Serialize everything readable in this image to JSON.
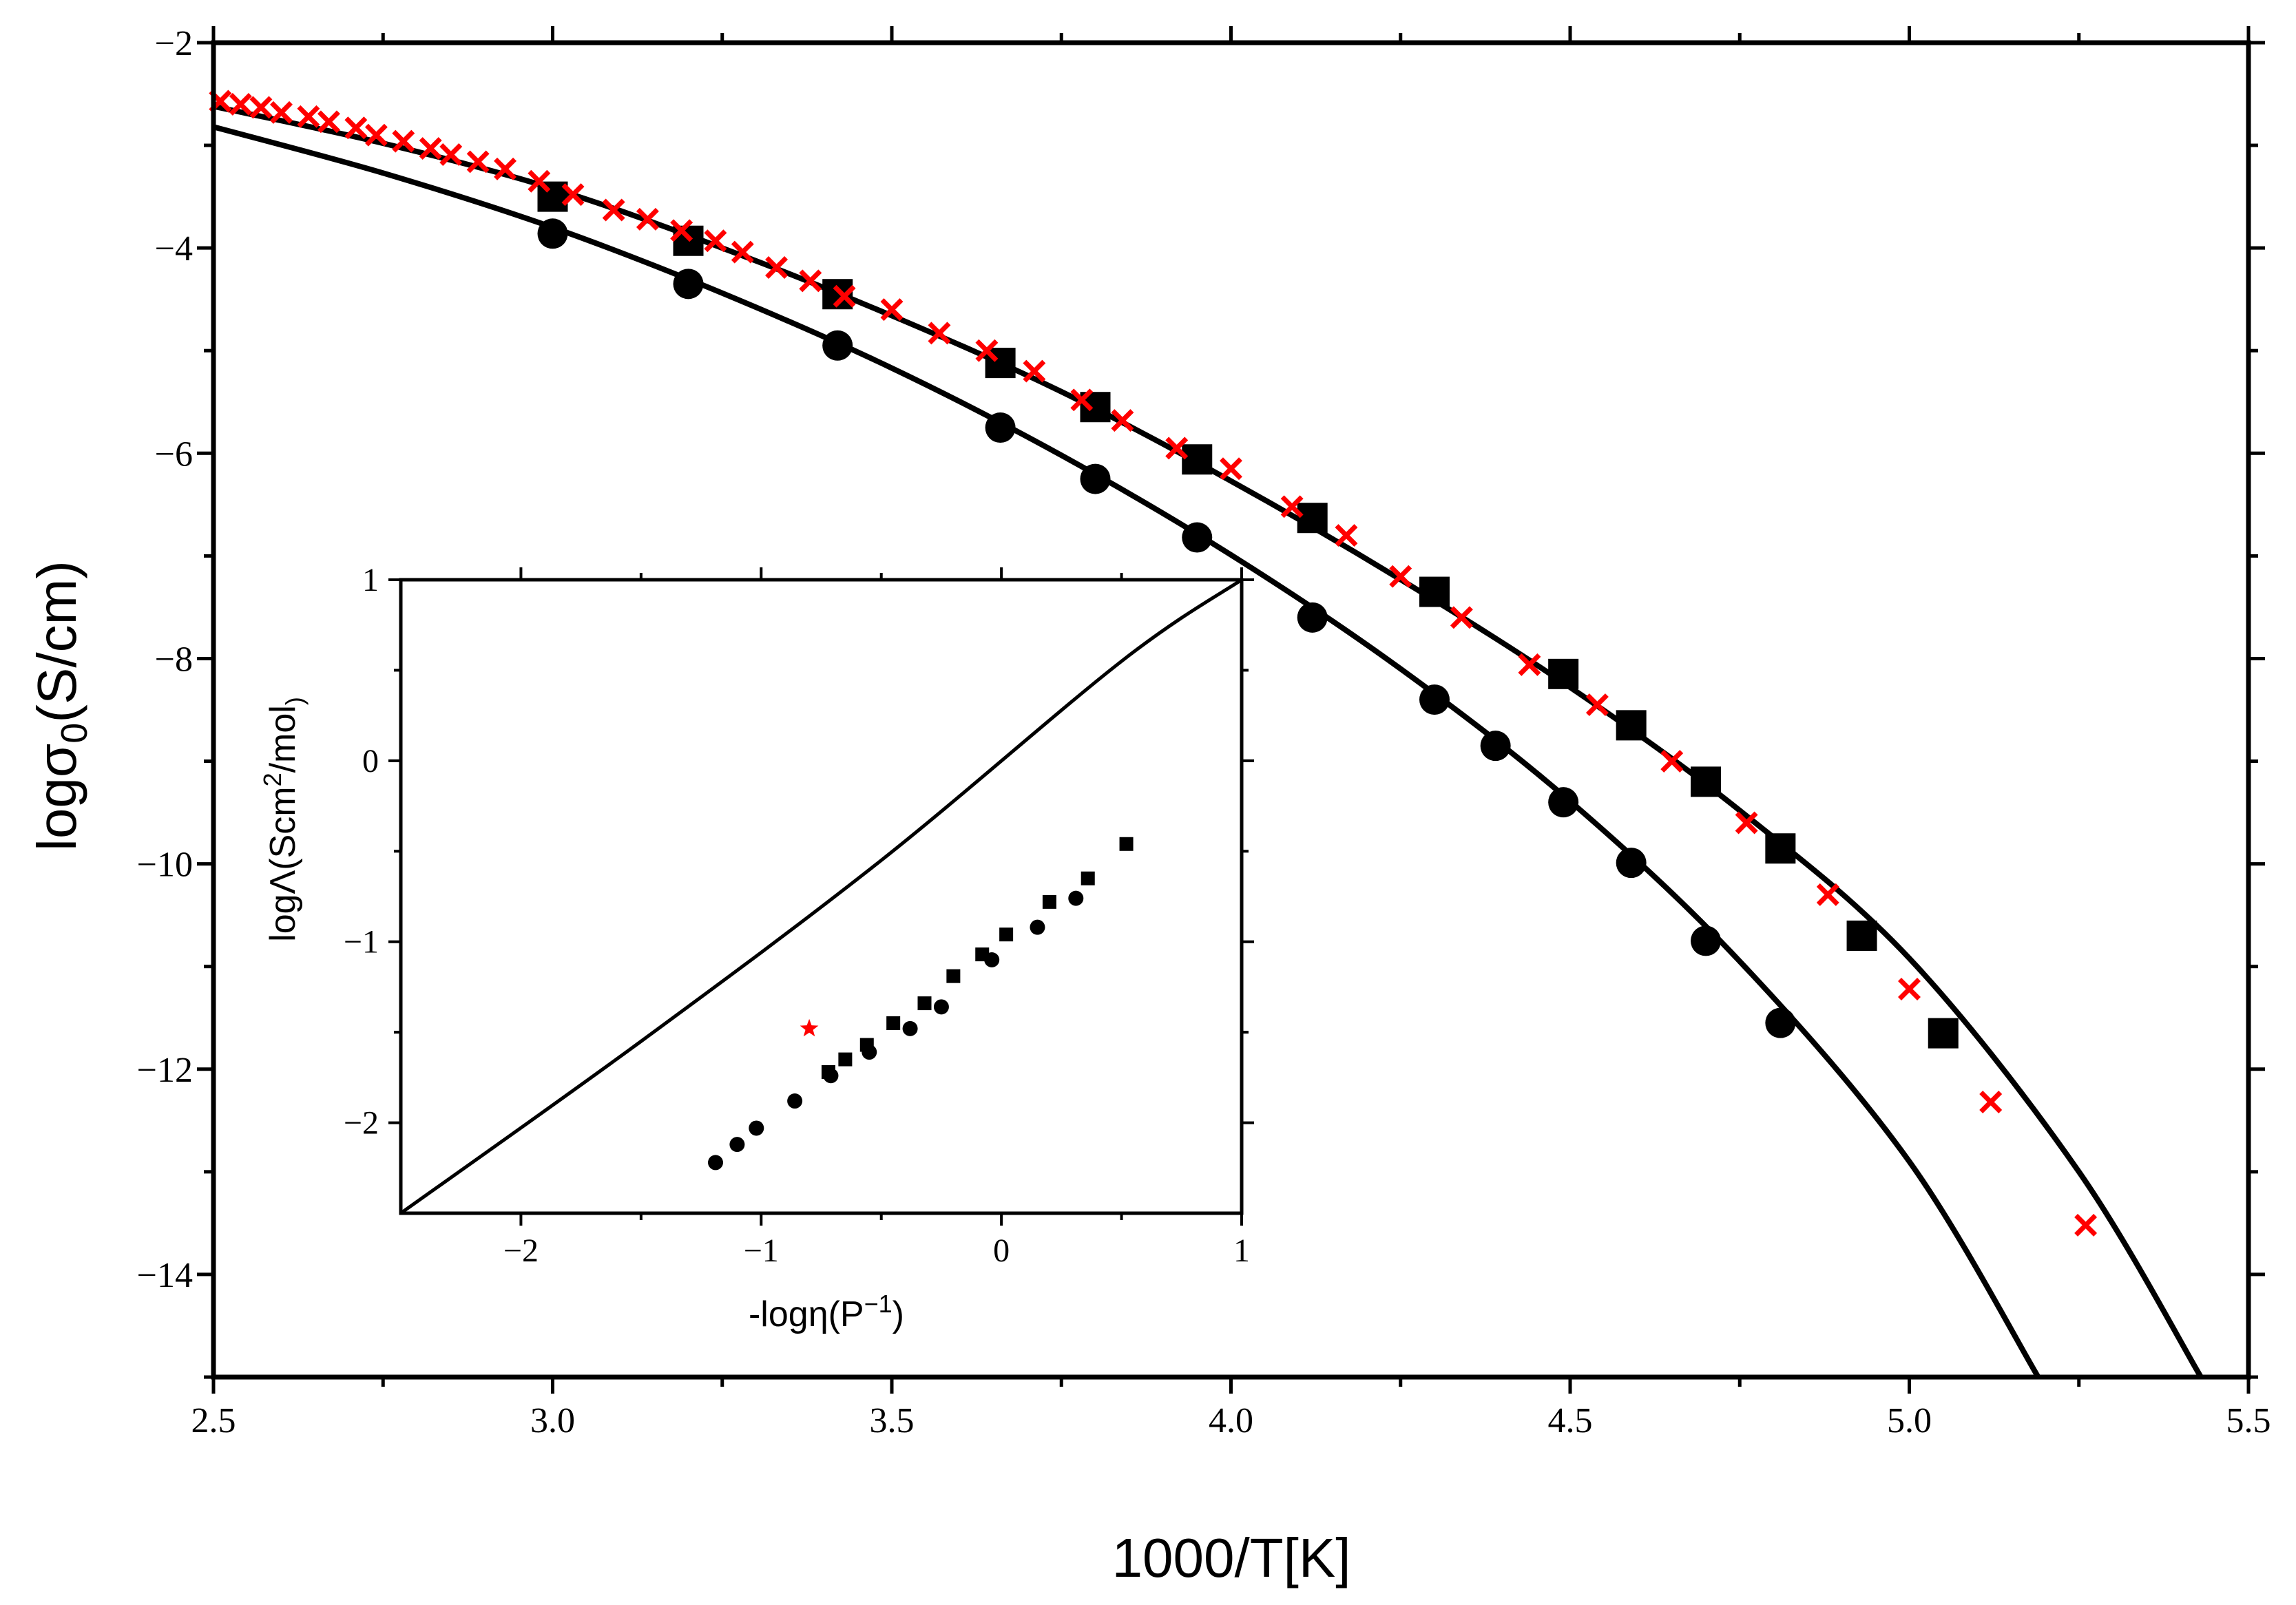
{
  "chart_data": [
    {
      "id": "main",
      "type": "scatter",
      "title": "",
      "xlabel": "1000/T[K]",
      "ylabel_base": "logσ",
      "ylabel_sub": "0",
      "ylabel_unit": "(S/cm)",
      "xlim": [
        2.5,
        5.5
      ],
      "ylim": [
        -15,
        -2
      ],
      "xticks": [
        2.5,
        3.0,
        3.5,
        4.0,
        4.5,
        5.0,
        5.5
      ],
      "xtick_labels": [
        "2.5",
        "3.0",
        "3.5",
        "4.0",
        "4.5",
        "5.0",
        "5.5"
      ],
      "yticks": [
        -14,
        -12,
        -10,
        -8,
        -6,
        -4,
        -2
      ],
      "ytick_labels": [
        "−14",
        "−12",
        "−10",
        "−8",
        "−6",
        "−4",
        "−2"
      ],
      "grid": false,
      "series": [
        {
          "name": "squares",
          "marker": "square",
          "color": "#000000",
          "x": [
            3.0,
            3.2,
            3.42,
            3.66,
            3.8,
            3.95,
            4.12,
            4.3,
            4.49,
            4.59,
            4.7,
            4.81,
            4.93,
            5.05
          ],
          "y": [
            -3.5,
            -3.93,
            -4.45,
            -5.12,
            -5.55,
            -6.06,
            -6.63,
            -7.35,
            -8.15,
            -8.65,
            -9.2,
            -9.85,
            -10.7,
            -11.65
          ]
        },
        {
          "name": "circles",
          "marker": "circle",
          "color": "#000000",
          "x": [
            3.0,
            3.2,
            3.42,
            3.66,
            3.8,
            3.95,
            4.12,
            4.3,
            4.39,
            4.49,
            4.59,
            4.7,
            4.81
          ],
          "y": [
            -3.86,
            -4.35,
            -4.95,
            -5.75,
            -6.25,
            -6.82,
            -7.6,
            -8.4,
            -8.85,
            -9.4,
            -9.99,
            -10.75,
            -11.55
          ]
        },
        {
          "name": "crosses",
          "marker": "x",
          "color": "#ff0000",
          "x": [
            2.51,
            2.54,
            2.57,
            2.6,
            2.64,
            2.67,
            2.71,
            2.74,
            2.78,
            2.82,
            2.85,
            2.89,
            2.93,
            2.98,
            3.03,
            3.09,
            3.14,
            3.19,
            3.24,
            3.28,
            3.33,
            3.38,
            3.43,
            3.5,
            3.57,
            3.64,
            3.71,
            3.78,
            3.84,
            3.92,
            4.0,
            4.09,
            4.17,
            4.25,
            4.34,
            4.44,
            4.54,
            4.65,
            4.76,
            4.88,
            5.0,
            5.12,
            5.26
          ],
          "y": [
            -2.57,
            -2.6,
            -2.63,
            -2.68,
            -2.72,
            -2.77,
            -2.83,
            -2.9,
            -2.96,
            -3.03,
            -3.09,
            -3.16,
            -3.23,
            -3.35,
            -3.48,
            -3.63,
            -3.72,
            -3.83,
            -3.93,
            -4.04,
            -4.19,
            -4.32,
            -4.47,
            -4.6,
            -4.83,
            -5.0,
            -5.2,
            -5.48,
            -5.68,
            -5.95,
            -6.15,
            -6.52,
            -6.8,
            -7.2,
            -7.6,
            -8.06,
            -8.45,
            -9.0,
            -9.6,
            -10.3,
            -11.22,
            -12.32,
            -13.52
          ]
        }
      ],
      "fit_lines": [
        {
          "name": "fit-upper",
          "color": "#000000",
          "x": [
            2.5,
            2.75,
            3.0,
            3.25,
            3.5,
            3.75,
            4.0,
            4.25,
            4.5,
            4.75,
            5.0,
            5.25,
            5.43
          ],
          "y": [
            -2.62,
            -2.98,
            -3.42,
            -4.0,
            -4.66,
            -5.4,
            -6.27,
            -7.23,
            -8.28,
            -9.48,
            -10.92,
            -13.0,
            -15.0
          ]
        },
        {
          "name": "fit-lower",
          "color": "#000000",
          "x": [
            2.5,
            2.75,
            3.0,
            3.25,
            3.5,
            3.75,
            4.0,
            4.25,
            4.5,
            4.75,
            5.0,
            5.19
          ],
          "y": [
            -2.82,
            -3.27,
            -3.8,
            -4.44,
            -5.17,
            -6.02,
            -6.99,
            -8.1,
            -9.39,
            -10.95,
            -12.9,
            -15.0
          ]
        }
      ]
    },
    {
      "id": "inset",
      "type": "scatter",
      "title": "",
      "xlabel": "-logη(P",
      "xlabel_sup": "−1",
      "xlabel_end": ")",
      "ylabel_a": "logΛ(Scm",
      "ylabel_sup": "2",
      "ylabel_b": "/mol",
      "ylabel_sub": ")",
      "xlim": [
        -2.5,
        1
      ],
      "ylim": [
        -2.5,
        1
      ],
      "xticks": [
        -2,
        -1,
        0,
        1
      ],
      "xtick_labels": [
        "−2",
        "−1",
        "0",
        "1"
      ],
      "yticks": [
        -2,
        -1,
        0,
        1
      ],
      "ytick_labels": [
        "−2",
        "−1",
        "0",
        "1"
      ],
      "grid": false,
      "series": [
        {
          "name": "inset-squares",
          "marker": "square",
          "color": "#000000",
          "x": [
            -0.72,
            -0.65,
            -0.56,
            -0.45,
            -0.32,
            -0.2,
            -0.08,
            0.02,
            0.2,
            0.36,
            0.52
          ],
          "y": [
            -1.72,
            -1.65,
            -1.57,
            -1.45,
            -1.34,
            -1.19,
            -1.07,
            -0.96,
            -0.78,
            -0.65,
            -0.46
          ]
        },
        {
          "name": "inset-circles",
          "marker": "circle",
          "color": "#000000",
          "x": [
            -1.19,
            -1.1,
            -1.02,
            -0.86,
            -0.71,
            -0.55,
            -0.38,
            -0.25,
            -0.04,
            0.15,
            0.31
          ],
          "y": [
            -2.22,
            -2.12,
            -2.03,
            -1.88,
            -1.74,
            -1.61,
            -1.48,
            -1.36,
            -1.1,
            -0.92,
            -0.76
          ]
        },
        {
          "name": "inset-star",
          "marker": "star",
          "color": "#ff0000",
          "x": [
            -0.8
          ],
          "y": [
            -1.48
          ]
        }
      ],
      "fit_lines": [
        {
          "name": "inset-ideal-line",
          "color": "#000000",
          "x": [
            -2.5,
            -1.5,
            -0.5,
            0.5,
            1.0
          ],
          "y": [
            -2.5,
            -1.55,
            -0.55,
            0.55,
            1.0
          ]
        }
      ]
    }
  ]
}
